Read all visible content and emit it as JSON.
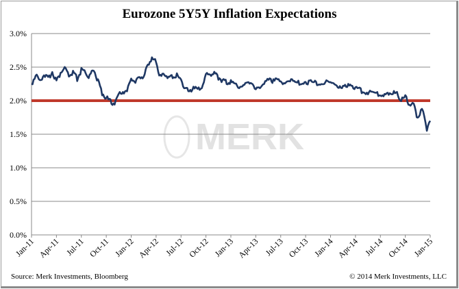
{
  "chart_data": {
    "type": "line",
    "title": "Eurozone 5Y5Y Inflation Expectations",
    "xlabel": "",
    "ylabel": "",
    "ylim": [
      0,
      3.0
    ],
    "yticks": [
      "0.0%",
      "0.5%",
      "1.0%",
      "1.5%",
      "2.0%",
      "2.5%",
      "3.0%"
    ],
    "ytick_values": [
      0,
      0.5,
      1.0,
      1.5,
      2.0,
      2.5,
      3.0
    ],
    "xticks": [
      "Jan-11",
      "Apr-11",
      "Jul-11",
      "Oct-11",
      "Jan-12",
      "Apr-12",
      "Jul-12",
      "Oct-12",
      "Jan-13",
      "Apr-13",
      "Jul-13",
      "Oct-13",
      "Jan-14",
      "Apr-14",
      "Jul-14",
      "Oct-14",
      "Jan-15"
    ],
    "xlim_months_since_jan11": [
      0,
      48
    ],
    "grid": true,
    "series": [
      {
        "name": "Eurozone 5Y5Y inflation expectations (%)",
        "color": "#1f3864",
        "x_months_since_jan11": [
          0,
          0.5,
          1,
          1.5,
          2,
          2.5,
          3,
          3.5,
          4,
          4.5,
          5,
          5.5,
          6,
          6.5,
          7,
          7.5,
          8,
          8.5,
          9,
          9.5,
          10,
          10.5,
          11,
          11.5,
          12,
          12.5,
          13,
          13.5,
          14,
          14.5,
          15,
          15.5,
          16,
          16.5,
          17,
          17.5,
          18,
          18.5,
          19,
          19.5,
          20,
          20.5,
          21,
          21.5,
          22,
          22.5,
          23,
          23.5,
          24,
          25,
          26,
          27,
          28,
          28.8,
          29,
          30,
          31,
          32,
          33,
          34,
          35,
          36,
          37,
          38,
          38.5,
          39,
          40,
          41,
          42,
          42.5,
          43,
          43.5,
          44,
          44.5,
          45,
          45.5,
          46,
          46.5,
          47,
          47.3,
          47.6,
          48
        ],
        "values": [
          2.25,
          2.38,
          2.3,
          2.4,
          2.32,
          2.45,
          2.28,
          2.42,
          2.48,
          2.36,
          2.42,
          2.32,
          2.45,
          2.42,
          2.35,
          2.48,
          2.28,
          2.12,
          2.05,
          1.98,
          1.96,
          2.1,
          2.15,
          2.12,
          2.35,
          2.25,
          2.38,
          2.32,
          2.55,
          2.62,
          2.58,
          2.35,
          2.4,
          2.34,
          2.36,
          2.38,
          2.3,
          2.2,
          2.1,
          2.22,
          2.15,
          2.2,
          2.38,
          2.4,
          2.42,
          2.35,
          2.3,
          2.28,
          2.28,
          2.22,
          2.26,
          2.2,
          2.24,
          2.34,
          2.3,
          2.28,
          2.3,
          2.26,
          2.28,
          2.27,
          2.26,
          2.27,
          2.22,
          2.2,
          2.24,
          2.18,
          2.14,
          2.12,
          2.1,
          2.08,
          2.12,
          2.12,
          2.1,
          2.02,
          2.05,
          1.95,
          1.92,
          1.75,
          1.85,
          1.78,
          1.55,
          1.7
        ]
      },
      {
        "name": "2.0% reference",
        "color": "#c0392b",
        "x_months_since_jan11": [
          0,
          48
        ],
        "values": [
          2.0,
          2.0
        ]
      }
    ]
  },
  "watermark": "MERK",
  "footer": {
    "source": "Source: Merk Investments, Bloomberg",
    "copyright": "© 2014 Merk Investments, LLC"
  }
}
